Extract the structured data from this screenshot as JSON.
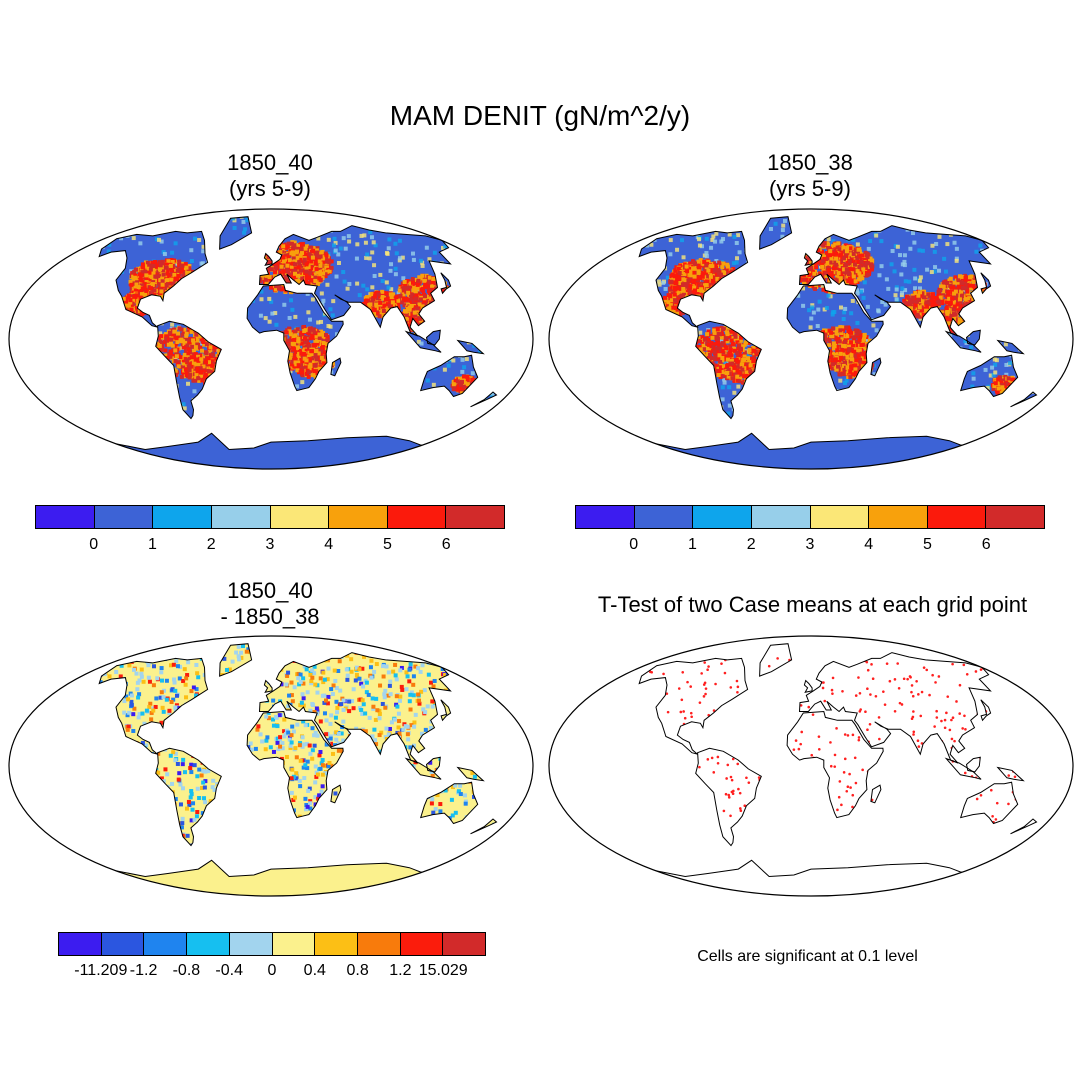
{
  "title": "MAM DENIT (gN/m^2/y)",
  "panels": [
    {
      "id": "p1",
      "line1": "1850_40",
      "line2": "(yrs 5-9)"
    },
    {
      "id": "p2",
      "line1": "1850_38",
      "line2": "(yrs 5-9)"
    },
    {
      "id": "p3",
      "line1": "1850_40",
      "line2": "- 1850_38"
    },
    {
      "id": "p4",
      "line1": "T-Test of two Case means at each grid point",
      "line2": ""
    }
  ],
  "colorbar_top": {
    "colors": [
      "#3c1cf0",
      "#3d63d6",
      "#0ea5ec",
      "#97cfea",
      "#fbe777",
      "#f8a10c",
      "#fb1a0c",
      "#d22a2a"
    ],
    "labels": [
      "0",
      "1",
      "2",
      "3",
      "4",
      "5",
      "6"
    ]
  },
  "colorbar_diff": {
    "colors": [
      "#3c1cf0",
      "#2b56e0",
      "#1f84ef",
      "#16bff0",
      "#a2d4ee",
      "#fbf18d",
      "#fcbf15",
      "#f87b0c",
      "#fb1c0c",
      "#d22a2a"
    ],
    "labels": [
      "-11.209",
      "-1.2",
      "-0.8",
      "-0.4",
      "0",
      "0.4",
      "0.8",
      "1.2",
      "15.029"
    ]
  },
  "significance_note": "Cells are significant at 0.1 level",
  "colors": {
    "land_low": "#3d63d6",
    "diff_neutral": "#fbf18d",
    "sig_dot": "#ff2020",
    "outline": "#000000"
  }
}
